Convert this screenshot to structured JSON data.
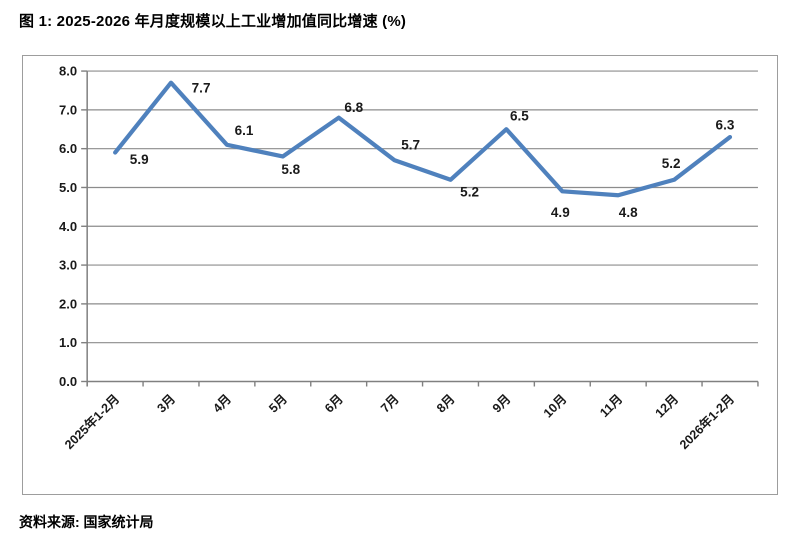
{
  "page": {
    "title": "图 1: 2025-2026 年月度规模以上工业增加值同比增速 (%)",
    "source_note": "资料来源: 国家统计局"
  },
  "chart_data": {
    "type": "line",
    "title": "图 1: 2025-2026 年月度规模以上工业增加值同比增速 (%)",
    "categories": [
      "2025年1-2月",
      "3月",
      "4月",
      "5月",
      "6月",
      "7月",
      "8月",
      "9月",
      "10月",
      "11月",
      "12月",
      "2026年1-2月"
    ],
    "values": [
      5.9,
      7.7,
      6.1,
      5.8,
      6.8,
      5.7,
      5.2,
      6.5,
      4.9,
      4.8,
      5.2,
      6.3
    ],
    "xlabel": "",
    "ylabel": "",
    "ylim": [
      0.0,
      8.0
    ],
    "ytick_step": 1.0,
    "ytick_labels": [
      "0.0",
      "1.0",
      "2.0",
      "3.0",
      "4.0",
      "5.0",
      "6.0",
      "7.0",
      "8.0"
    ],
    "grid": true,
    "legend": "none",
    "data_labels": true,
    "colors": {
      "line": "#4f81bd",
      "gridline": "#8c8c8c",
      "axis": "#808080",
      "frame_border": "#9d9d9d",
      "label_text": "#1a1a1a"
    },
    "source": "资料来源: 国家统计局"
  }
}
